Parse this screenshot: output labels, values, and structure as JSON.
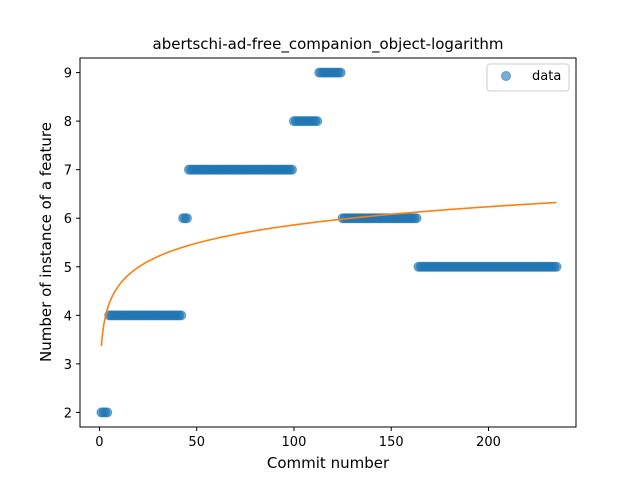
{
  "chart_data": {
    "type": "scatter",
    "title": "abertschi-ad-free_companion_object-logarithm",
    "xlabel": "Commit number",
    "ylabel": "Number of instance of a feature",
    "xlim": [
      -10,
      245
    ],
    "ylim": [
      1.7,
      9.3
    ],
    "x_ticks": [
      0,
      50,
      100,
      150,
      200
    ],
    "y_ticks": [
      2,
      3,
      4,
      5,
      6,
      7,
      8,
      9
    ],
    "grid": false,
    "legend_position": "top-right",
    "legend": [
      "data"
    ],
    "colors": {
      "data": "#1f77b4",
      "fit": "#ff7f0e"
    },
    "series": [
      {
        "name": "data",
        "kind": "scatter",
        "segments": [
          {
            "x_start": 1,
            "x_end": 4,
            "y": 2
          },
          {
            "x_start": 5,
            "x_end": 42,
            "y": 4
          },
          {
            "x_start": 43,
            "x_end": 45,
            "y": 6
          },
          {
            "x_start": 46,
            "x_end": 99,
            "y": 7
          },
          {
            "x_start": 100,
            "x_end": 112,
            "y": 8
          },
          {
            "x_start": 113,
            "x_end": 124,
            "y": 9
          },
          {
            "x_start": 125,
            "x_end": 163,
            "y": 6
          },
          {
            "x_start": 164,
            "x_end": 235,
            "y": 5
          }
        ]
      },
      {
        "kind": "line",
        "x_range": [
          1,
          235
        ],
        "fit": {
          "type": "logarithmic",
          "a": 3.37,
          "b": 0.541
        }
      }
    ]
  }
}
